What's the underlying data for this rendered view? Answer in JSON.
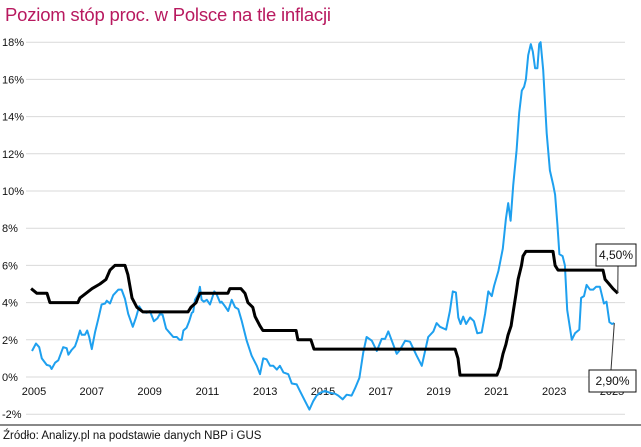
{
  "title": "Poziom stóp proc. w Polsce na tle inflacji",
  "source": "Źródło: Analizy.pl na podstawie danych NBP i GUS",
  "chart_data": {
    "type": "line",
    "title": "Poziom stóp proc. w Polsce na tle inflacji",
    "xlabel": "",
    "ylabel": "",
    "xlim": [
      2004.9,
      2025.45
    ],
    "ylim": [
      -2,
      18
    ],
    "grid": true,
    "x_ticks": [
      "2005",
      "2007",
      "2009",
      "2011",
      "2013",
      "2015",
      "2017",
      "2019",
      "2021",
      "2023",
      "2025"
    ],
    "y_ticks": [
      "-2%",
      "0%",
      "2%",
      "4%",
      "6%",
      "8%",
      "10%",
      "12%",
      "14%",
      "16%",
      "18%"
    ],
    "colors": {
      "rate": "#000000",
      "inflation": "#1ea0ef",
      "title": "#b8195f"
    },
    "annotations": [
      {
        "series": "rate",
        "text": "4,50%"
      },
      {
        "series": "inflation",
        "text": "2,90%"
      }
    ],
    "series": [
      {
        "id": "rate",
        "points": [
          [
            2004.9,
            4.75
          ],
          [
            2005.1,
            4.5
          ],
          [
            2005.45,
            4.5
          ],
          [
            2005.55,
            4.0
          ],
          [
            2006.52,
            4.0
          ],
          [
            2006.59,
            4.25
          ],
          [
            2006.8,
            4.5
          ],
          [
            2007.01,
            4.75
          ],
          [
            2007.28,
            5.0
          ],
          [
            2007.49,
            5.25
          ],
          [
            2007.63,
            5.75
          ],
          [
            2007.8,
            6.0
          ],
          [
            2008.15,
            6.0
          ],
          [
            2008.25,
            5.5
          ],
          [
            2008.39,
            4.25
          ],
          [
            2008.56,
            3.75
          ],
          [
            2008.77,
            3.5
          ],
          [
            2010.33,
            3.5
          ],
          [
            2010.43,
            3.75
          ],
          [
            2010.61,
            4.0
          ],
          [
            2010.67,
            4.25
          ],
          [
            2010.74,
            4.5
          ],
          [
            2011.71,
            4.5
          ],
          [
            2011.78,
            4.75
          ],
          [
            2012.16,
            4.75
          ],
          [
            2012.3,
            4.5
          ],
          [
            2012.4,
            4.0
          ],
          [
            2012.57,
            3.75
          ],
          [
            2012.65,
            3.25
          ],
          [
            2012.82,
            2.75
          ],
          [
            2012.92,
            2.5
          ],
          [
            2014.07,
            2.5
          ],
          [
            2014.13,
            2.0
          ],
          [
            2014.58,
            2.0
          ],
          [
            2014.69,
            1.5
          ],
          [
            2019.57,
            1.5
          ],
          [
            2019.67,
            1.0
          ],
          [
            2019.74,
            0.1
          ],
          [
            2021.02,
            0.1
          ],
          [
            2021.12,
            0.5
          ],
          [
            2021.23,
            1.25
          ],
          [
            2021.33,
            1.75
          ],
          [
            2021.4,
            2.25
          ],
          [
            2021.51,
            2.75
          ],
          [
            2021.58,
            3.5
          ],
          [
            2021.68,
            4.5
          ],
          [
            2021.75,
            5.25
          ],
          [
            2021.87,
            6.0
          ],
          [
            2021.92,
            6.5
          ],
          [
            2022.02,
            6.75
          ],
          [
            2022.96,
            6.75
          ],
          [
            2023.03,
            6.0
          ],
          [
            2023.13,
            5.75
          ],
          [
            2024.69,
            5.75
          ],
          [
            2024.76,
            5.25
          ],
          [
            2024.9,
            5.0
          ],
          [
            2025.03,
            4.75
          ],
          [
            2025.2,
            4.5
          ]
        ]
      },
      {
        "id": "inflation",
        "points": [
          [
            2004.93,
            1.4
          ],
          [
            2005.07,
            1.8
          ],
          [
            2005.18,
            1.6
          ],
          [
            2005.27,
            1.0
          ],
          [
            2005.44,
            0.65
          ],
          [
            2005.55,
            0.6
          ],
          [
            2005.61,
            0.43
          ],
          [
            2005.73,
            0.77
          ],
          [
            2005.84,
            0.9
          ],
          [
            2006.01,
            1.6
          ],
          [
            2006.13,
            1.55
          ],
          [
            2006.19,
            1.2
          ],
          [
            2006.3,
            1.45
          ],
          [
            2006.42,
            1.65
          ],
          [
            2006.5,
            2.0
          ],
          [
            2006.59,
            2.5
          ],
          [
            2006.65,
            2.27
          ],
          [
            2006.76,
            2.27
          ],
          [
            2006.84,
            2.5
          ],
          [
            2006.91,
            2.15
          ],
          [
            2007.0,
            1.5
          ],
          [
            2007.11,
            2.4
          ],
          [
            2007.22,
            3.1
          ],
          [
            2007.34,
            3.9
          ],
          [
            2007.46,
            3.95
          ],
          [
            2007.52,
            4.1
          ],
          [
            2007.63,
            3.95
          ],
          [
            2007.74,
            4.4
          ],
          [
            2007.92,
            4.7
          ],
          [
            2008.03,
            4.7
          ],
          [
            2008.15,
            4.2
          ],
          [
            2008.26,
            3.4
          ],
          [
            2008.42,
            2.7
          ],
          [
            2008.53,
            3.2
          ],
          [
            2008.64,
            3.8
          ],
          [
            2008.76,
            3.5
          ],
          [
            2008.9,
            3.45
          ],
          [
            2009.01,
            3.55
          ],
          [
            2009.15,
            3.0
          ],
          [
            2009.27,
            3.15
          ],
          [
            2009.36,
            3.4
          ],
          [
            2009.45,
            3.35
          ],
          [
            2009.57,
            2.6
          ],
          [
            2009.71,
            2.35
          ],
          [
            2009.82,
            2.15
          ],
          [
            2009.94,
            2.15
          ],
          [
            2010.03,
            2.0
          ],
          [
            2010.11,
            2.0
          ],
          [
            2010.17,
            2.5
          ],
          [
            2010.28,
            2.65
          ],
          [
            2010.37,
            3.0
          ],
          [
            2010.46,
            3.45
          ],
          [
            2010.51,
            3.5
          ],
          [
            2010.57,
            4.15
          ],
          [
            2010.69,
            4.45
          ],
          [
            2010.74,
            4.85
          ],
          [
            2010.8,
            4.15
          ],
          [
            2010.88,
            4.05
          ],
          [
            2010.98,
            4.15
          ],
          [
            2011.09,
            3.9
          ],
          [
            2011.24,
            4.6
          ],
          [
            2011.32,
            4.45
          ],
          [
            2011.44,
            4.0
          ],
          [
            2011.49,
            4.05
          ],
          [
            2011.61,
            3.8
          ],
          [
            2011.72,
            3.55
          ],
          [
            2011.84,
            4.15
          ],
          [
            2011.96,
            3.75
          ],
          [
            2012.07,
            3.65
          ],
          [
            2012.19,
            3.0
          ],
          [
            2012.36,
            1.95
          ],
          [
            2012.53,
            1.15
          ],
          [
            2012.71,
            0.6
          ],
          [
            2012.82,
            0.15
          ],
          [
            2012.93,
            1.0
          ],
          [
            2013.05,
            0.95
          ],
          [
            2013.17,
            0.6
          ],
          [
            2013.28,
            0.6
          ],
          [
            2013.4,
            0.4
          ],
          [
            2013.51,
            0.6
          ],
          [
            2013.63,
            0.25
          ],
          [
            2013.8,
            0.15
          ],
          [
            2013.92,
            -0.35
          ],
          [
            2014.09,
            -0.4
          ],
          [
            2014.2,
            -0.75
          ],
          [
            2014.38,
            -1.3
          ],
          [
            2014.53,
            -1.75
          ],
          [
            2014.66,
            -1.3
          ],
          [
            2014.78,
            -1.0
          ],
          [
            2014.9,
            -0.85
          ],
          [
            2015.07,
            -0.75
          ],
          [
            2015.24,
            -0.85
          ],
          [
            2015.42,
            -0.9
          ],
          [
            2015.53,
            -1.0
          ],
          [
            2015.68,
            -1.2
          ],
          [
            2015.82,
            -0.95
          ],
          [
            2015.99,
            -1.0
          ],
          [
            2016.11,
            -0.6
          ],
          [
            2016.26,
            -0.05
          ],
          [
            2016.39,
            1.3
          ],
          [
            2016.51,
            2.15
          ],
          [
            2016.69,
            1.95
          ],
          [
            2016.86,
            1.4
          ],
          [
            2017.03,
            2.05
          ],
          [
            2017.15,
            2.05
          ],
          [
            2017.26,
            2.45
          ],
          [
            2017.38,
            1.95
          ],
          [
            2017.55,
            1.25
          ],
          [
            2017.66,
            1.45
          ],
          [
            2017.84,
            1.95
          ],
          [
            2018.01,
            1.9
          ],
          [
            2018.24,
            1.15
          ],
          [
            2018.42,
            0.6
          ],
          [
            2018.64,
            2.15
          ],
          [
            2018.82,
            2.45
          ],
          [
            2018.93,
            2.9
          ],
          [
            2019.05,
            2.7
          ],
          [
            2019.26,
            2.55
          ],
          [
            2019.39,
            3.55
          ],
          [
            2019.49,
            4.6
          ],
          [
            2019.6,
            4.55
          ],
          [
            2019.68,
            3.2
          ],
          [
            2019.76,
            2.85
          ],
          [
            2019.85,
            3.25
          ],
          [
            2019.95,
            2.85
          ],
          [
            2020.09,
            3.2
          ],
          [
            2020.22,
            3.0
          ],
          [
            2020.34,
            2.35
          ],
          [
            2020.49,
            2.4
          ],
          [
            2020.61,
            3.4
          ],
          [
            2020.72,
            4.6
          ],
          [
            2020.84,
            4.35
          ],
          [
            2020.92,
            4.9
          ],
          [
            2021.07,
            5.7
          ],
          [
            2021.22,
            6.9
          ],
          [
            2021.33,
            8.5
          ],
          [
            2021.41,
            9.35
          ],
          [
            2021.49,
            8.4
          ],
          [
            2021.58,
            10.3
          ],
          [
            2021.7,
            12.2
          ],
          [
            2021.79,
            14.2
          ],
          [
            2021.88,
            15.4
          ],
          [
            2021.96,
            15.6
          ],
          [
            2022.02,
            16.0
          ],
          [
            2022.1,
            17.3
          ],
          [
            2022.19,
            17.9
          ],
          [
            2022.26,
            17.5
          ],
          [
            2022.34,
            16.6
          ],
          [
            2022.42,
            16.6
          ],
          [
            2022.48,
            17.9
          ],
          [
            2022.53,
            18.0
          ],
          [
            2022.62,
            16.5
          ],
          [
            2022.74,
            13.1
          ],
          [
            2022.85,
            11.1
          ],
          [
            2022.97,
            10.3
          ],
          [
            2023.03,
            9.8
          ],
          [
            2023.11,
            8.2
          ],
          [
            2023.18,
            6.6
          ],
          [
            2023.29,
            6.5
          ],
          [
            2023.37,
            6.0
          ],
          [
            2023.45,
            3.6
          ],
          [
            2023.61,
            2.0
          ],
          [
            2023.72,
            2.35
          ],
          [
            2023.87,
            2.55
          ],
          [
            2023.93,
            4.25
          ],
          [
            2024.03,
            4.35
          ],
          [
            2024.12,
            4.95
          ],
          [
            2024.24,
            4.7
          ],
          [
            2024.35,
            4.7
          ],
          [
            2024.45,
            4.85
          ],
          [
            2024.58,
            4.85
          ],
          [
            2024.72,
            3.95
          ],
          [
            2024.81,
            4.05
          ],
          [
            2024.91,
            2.95
          ],
          [
            2025.0,
            2.85
          ],
          [
            2025.08,
            2.9
          ]
        ]
      }
    ]
  }
}
